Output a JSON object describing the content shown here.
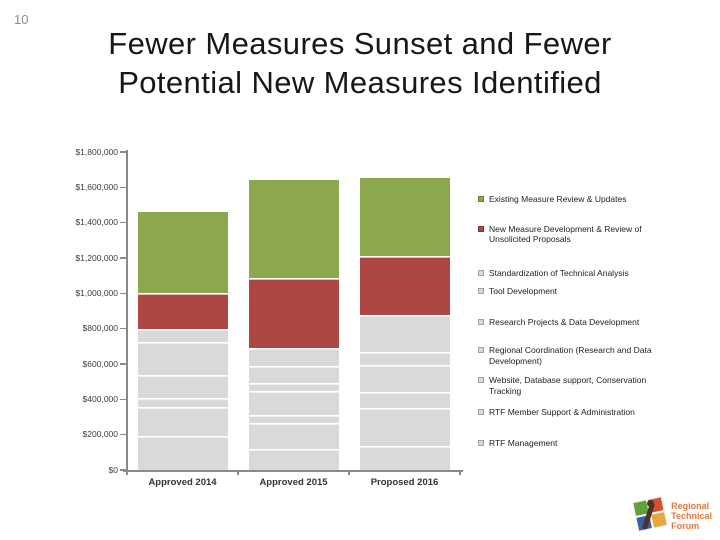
{
  "page": {
    "number": "10"
  },
  "title": {
    "line1": "Fewer Measures Sunset and Fewer",
    "line2": "Potential New Measures Identified"
  },
  "chart_data": {
    "type": "bar",
    "stacked": true,
    "title": "",
    "xlabel": "",
    "ylabel": "",
    "grid": false,
    "legend_position": "right",
    "ylim": [
      0,
      1800000
    ],
    "y_ticks": [
      "$0",
      "$200,000",
      "$400,000",
      "$600,000",
      "$800,000",
      "$1,000,000",
      "$1,200,000",
      "$1,400,000",
      "$1,600,000",
      "$1,800,000"
    ],
    "categories": [
      "Approved 2014",
      "Approved 2015",
      "Proposed 2016"
    ],
    "series": [
      {
        "name": "RTF Management",
        "color": "#d9d9d9",
        "values": [
          190000,
          120000,
          135000
        ]
      },
      {
        "name": "RTF Member Support & Administration",
        "color": "#d9d9d9",
        "values": [
          165000,
          145000,
          215000
        ]
      },
      {
        "name": "Website, Database support, Conservation Tracking",
        "color": "#d9d9d9",
        "values": [
          55000,
          45000,
          90000
        ]
      },
      {
        "name": "Regional Coordination (Research and Data Development)",
        "color": "#d9d9d9",
        "values": [
          130000,
          140000,
          155000
        ]
      },
      {
        "name": "Research Projects & Data Development",
        "color": "#d9d9d9",
        "values": [
          185000,
          40000,
          75000
        ]
      },
      {
        "name": "Tool Development",
        "color": "#d9d9d9",
        "values": [
          75000,
          100000,
          210000
        ]
      },
      {
        "name": "Standardization of Technical Analysis",
        "color": "#d9d9d9",
        "values": [
          0,
          100000,
          0
        ]
      },
      {
        "name": "New Measure Development & Review of Unsolicited Proposals",
        "color": "#ac4744",
        "values": [
          200000,
          400000,
          330000
        ]
      },
      {
        "name": "Existing Measure Review & Updates",
        "color": "#8ba84d",
        "values": [
          460000,
          550000,
          445000
        ]
      }
    ],
    "totals": [
      1460000,
      1640000,
      1655000
    ]
  },
  "colors": {
    "accent_green": "#8ba84d",
    "accent_red": "#ac4744",
    "neutral_gray": "#d9d9d9",
    "axis_gray": "#8a8a8a"
  },
  "logo": {
    "lines": [
      "Regional",
      "Technical",
      "Forum"
    ],
    "text_color": "#e2783c",
    "quadrant_colors": [
      "#5fa13d",
      "#d6502f",
      "#3b5ea8",
      "#e9a63b"
    ]
  }
}
